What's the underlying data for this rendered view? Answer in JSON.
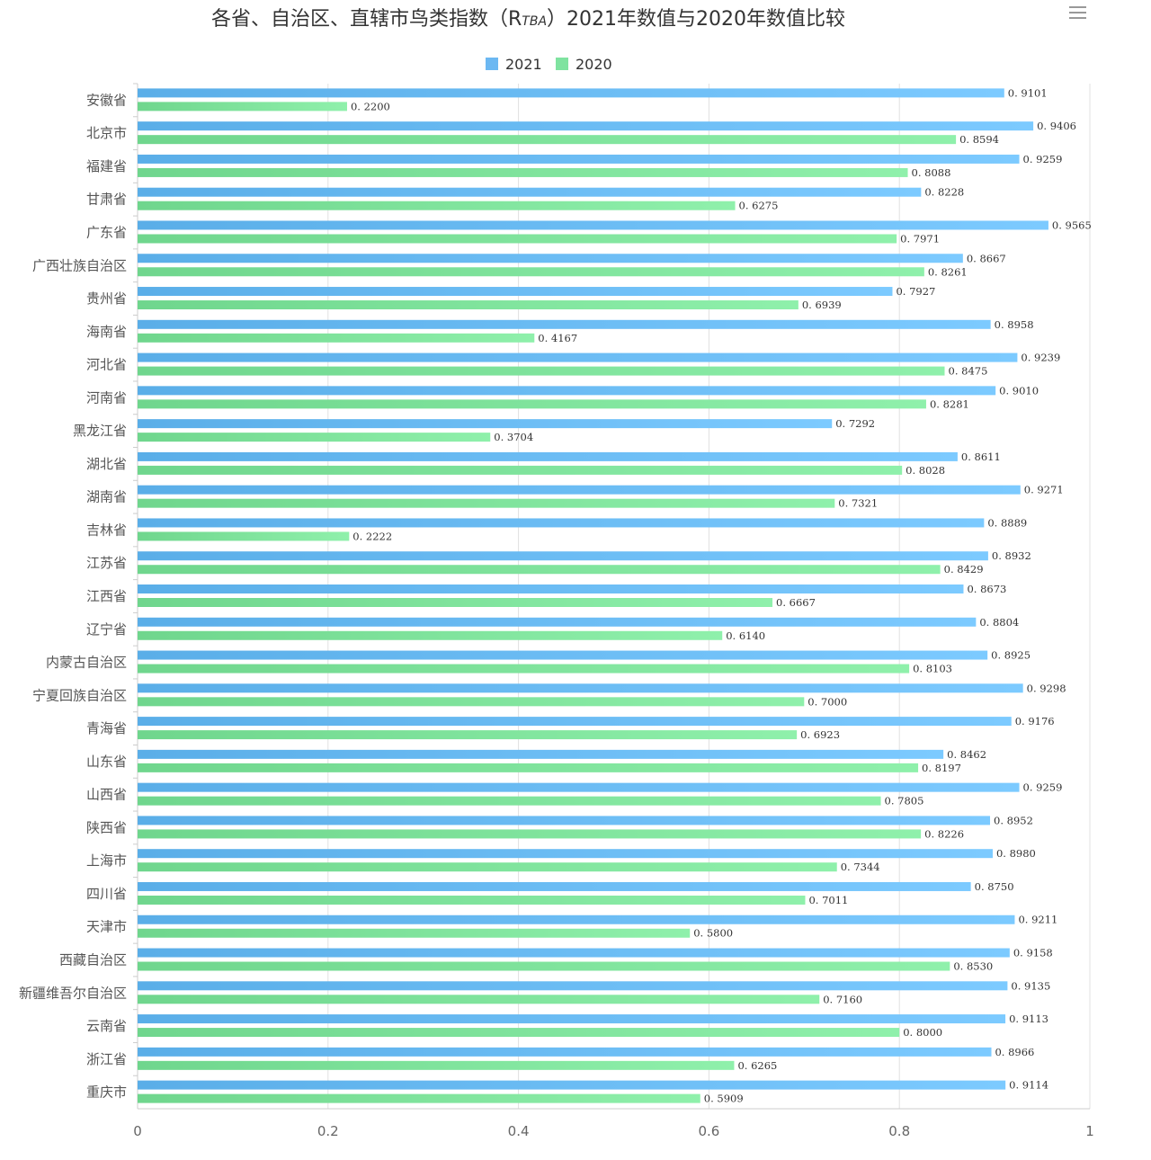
{
  "header": {
    "title_main": "各省、自治区、直辖市鸟类指数（R",
    "title_sub": "TBA",
    "title_tail": "）2021年数值与2020年数值比较",
    "menu_icon": "hamburger-menu-icon"
  },
  "chart_data": {
    "type": "bar",
    "orientation": "horizontal",
    "title": "各省、自治区、直辖市鸟类指数（RTBA）2021年数值与2020年数值比较",
    "xlabel": "",
    "ylabel": "",
    "xlim": [
      0,
      1
    ],
    "x_ticks": [
      "0",
      "0.2",
      "0.4",
      "0.6",
      "0.8",
      "1"
    ],
    "grid": true,
    "legend_position": "top-center",
    "categories": [
      "安徽省",
      "北京市",
      "福建省",
      "甘肃省",
      "广东省",
      "广西壮族自治区",
      "贵州省",
      "海南省",
      "河北省",
      "河南省",
      "黑龙江省",
      "湖北省",
      "湖南省",
      "吉林省",
      "江苏省",
      "江西省",
      "辽宁省",
      "内蒙古自治区",
      "宁夏回族自治区",
      "青海省",
      "山东省",
      "山西省",
      "陕西省",
      "上海市",
      "四川省",
      "天津市",
      "西藏自治区",
      "新疆维吾尔自治区",
      "云南省",
      "浙江省",
      "重庆市"
    ],
    "series": [
      {
        "name": "2021",
        "color": "#6cb8f2",
        "values": [
          0.9101,
          0.9406,
          0.9259,
          0.8228,
          0.9565,
          0.8667,
          0.7927,
          0.8958,
          0.9239,
          0.901,
          0.7292,
          0.8611,
          0.9271,
          0.8889,
          0.8932,
          0.8673,
          0.8804,
          0.8925,
          0.9298,
          0.9176,
          0.8462,
          0.9259,
          0.8952,
          0.898,
          0.875,
          0.9211,
          0.9158,
          0.9135,
          0.9113,
          0.8966,
          0.9114
        ],
        "labels": [
          "0. 9101",
          "0. 9406",
          "0. 9259",
          "0. 8228",
          "0. 9565",
          "0. 8667",
          "0. 7927",
          "0. 8958",
          "0. 9239",
          "0. 9010",
          "0. 7292",
          "0. 8611",
          "0. 9271",
          "0. 8889",
          "0. 8932",
          "0. 8673",
          "0. 8804",
          "0. 8925",
          "0. 9298",
          "0. 9176",
          "0. 8462",
          "0. 9259",
          "0. 8952",
          "0. 8980",
          "0. 8750",
          "0. 9211",
          "0. 9158",
          "0. 9135",
          "0. 9113",
          "0. 8966",
          "0. 9114"
        ]
      },
      {
        "name": "2020",
        "color": "#7fe3a0",
        "values": [
          0.22,
          0.8594,
          0.8088,
          0.6275,
          0.7971,
          0.8261,
          0.6939,
          0.4167,
          0.8475,
          0.8281,
          0.3704,
          0.8028,
          0.7321,
          0.2222,
          0.8429,
          0.6667,
          0.614,
          0.8103,
          0.7,
          0.6923,
          0.8197,
          0.7805,
          0.8226,
          0.7344,
          0.7011,
          0.58,
          0.853,
          0.716,
          0.8,
          0.6265,
          0.5909
        ],
        "labels": [
          "0. 2200",
          "0. 8594",
          "0. 8088",
          "0. 6275",
          "0. 7971",
          "0. 8261",
          "0. 6939",
          "0. 4167",
          "0. 8475",
          "0. 8281",
          "0. 3704",
          "0. 8028",
          "0. 7321",
          "0. 2222",
          "0. 8429",
          "0. 6667",
          "0. 6140",
          "0. 8103",
          "0. 7000",
          "0. 6923",
          "0. 8197",
          "0. 7805",
          "0. 8226",
          "0. 7344",
          "0. 7011",
          "0. 5800",
          "0. 8530",
          "0. 7160",
          "0. 8000",
          "0. 6265",
          "0. 5909"
        ]
      }
    ]
  }
}
